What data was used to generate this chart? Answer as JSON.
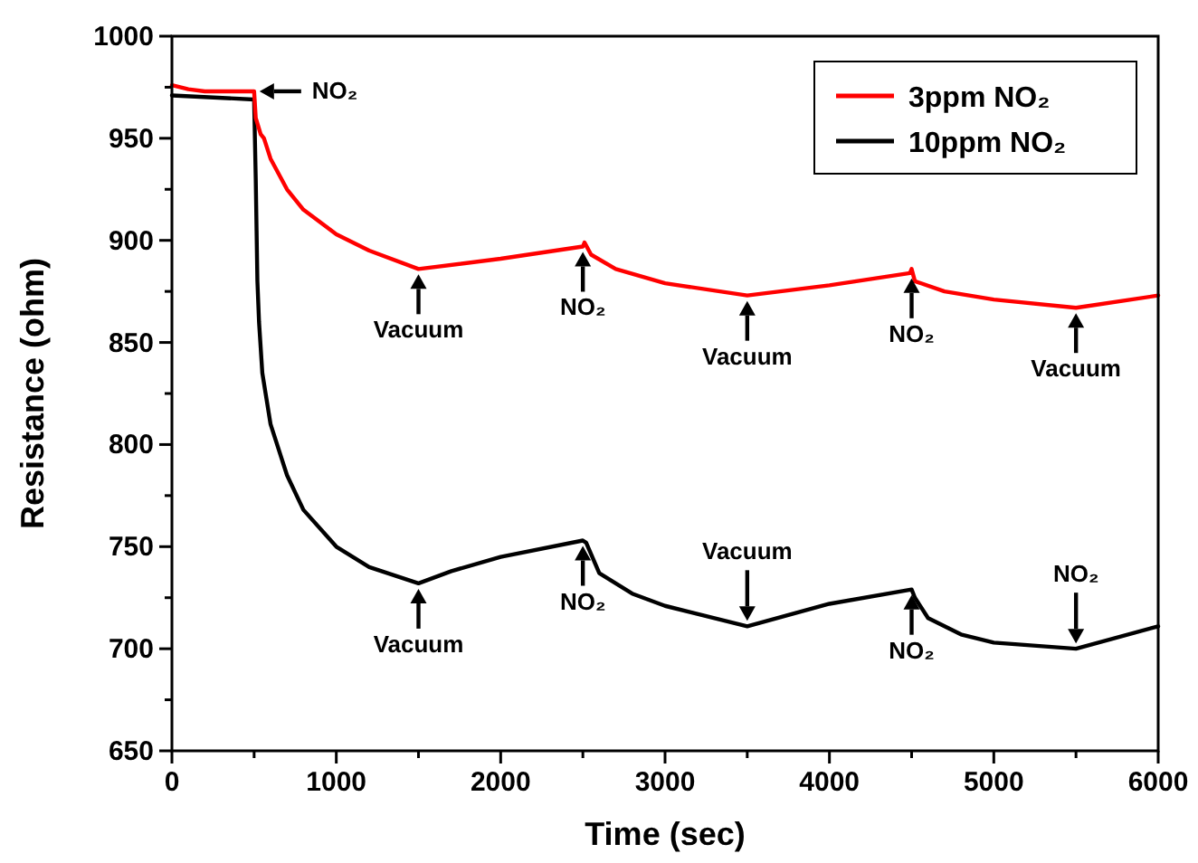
{
  "chart_data": {
    "type": "line",
    "xlabel": "Time (sec)",
    "ylabel": "Resistance (ohm)",
    "xlim": [
      0,
      6000
    ],
    "ylim": [
      650,
      1000
    ],
    "xticks": [
      0,
      {
        "value": 500,
        "label": null
      },
      1000,
      {
        "value": 1500,
        "label": null
      },
      2000,
      {
        "value": 2500,
        "label": null
      },
      3000,
      {
        "value": 3500,
        "label": null
      },
      4000,
      {
        "value": 4500,
        "label": null
      },
      5000,
      {
        "value": 5500,
        "label": null
      },
      6000
    ],
    "yticks": [
      650,
      {
        "value": 675,
        "label": null
      },
      700,
      {
        "value": 725,
        "label": null
      },
      750,
      {
        "value": 775,
        "label": null
      },
      800,
      {
        "value": 825,
        "label": null
      },
      850,
      {
        "value": 875,
        "label": null
      },
      900,
      {
        "value": 925,
        "label": null
      },
      950,
      {
        "value": 975,
        "label": null
      },
      1000
    ],
    "grid": false,
    "legend": "top right",
    "marker": "none",
    "line_style": "solid",
    "series": [
      {
        "name": "3ppm NO₂",
        "color": "#ff0000",
        "x": [
          0,
          100,
          200,
          500,
          510,
          540,
          560,
          600,
          700,
          800,
          1000,
          1200,
          1500,
          2000,
          2500,
          2510,
          2550,
          2700,
          3000,
          3500,
          4000,
          4490,
          4500,
          4520,
          4700,
          5000,
          5500,
          6000
        ],
        "values": [
          976,
          974,
          973,
          973,
          960,
          952,
          950,
          940,
          925,
          915,
          903,
          895,
          886,
          891,
          897,
          899,
          893,
          886,
          879,
          873,
          878,
          884,
          886,
          880,
          875,
          871,
          867,
          873
        ]
      },
      {
        "name": "10ppm NO₂",
        "color": "#000000",
        "x": [
          0,
          500,
          510,
          520,
          530,
          550,
          600,
          700,
          800,
          1000,
          1200,
          1500,
          1700,
          2000,
          2500,
          2520,
          2600,
          2800,
          3000,
          3500,
          4000,
          4500,
          4520,
          4600,
          4800,
          5000,
          5500,
          6000
        ],
        "values": [
          971,
          969,
          930,
          880,
          860,
          835,
          810,
          785,
          768,
          750,
          740,
          732,
          738,
          745,
          753,
          752,
          737,
          727,
          721,
          711,
          722,
          729,
          725,
          715,
          707,
          703,
          700,
          711
        ]
      }
    ],
    "annotations": [
      {
        "text": "NO₂",
        "x": 500,
        "y": 973
      },
      {
        "text": "Vacuum",
        "x": 1500,
        "y": 886
      },
      {
        "text": "NO₂",
        "x": 2500,
        "y": 897
      },
      {
        "text": "Vacuum",
        "x": 3500,
        "y": 873
      },
      {
        "text": "NO₂",
        "x": 4500,
        "y": 884
      },
      {
        "text": "Vacuum",
        "x": 5500,
        "y": 867
      },
      {
        "text": "Vacuum",
        "x": 1500,
        "y": 732
      },
      {
        "text": "NO₂",
        "x": 2500,
        "y": 753
      },
      {
        "text": "Vacuum",
        "x": 3500,
        "y": 711
      },
      {
        "text": "NO₂",
        "x": 4500,
        "y": 729
      },
      {
        "text": "NO₂",
        "x": 5500,
        "y": 700
      }
    ]
  }
}
